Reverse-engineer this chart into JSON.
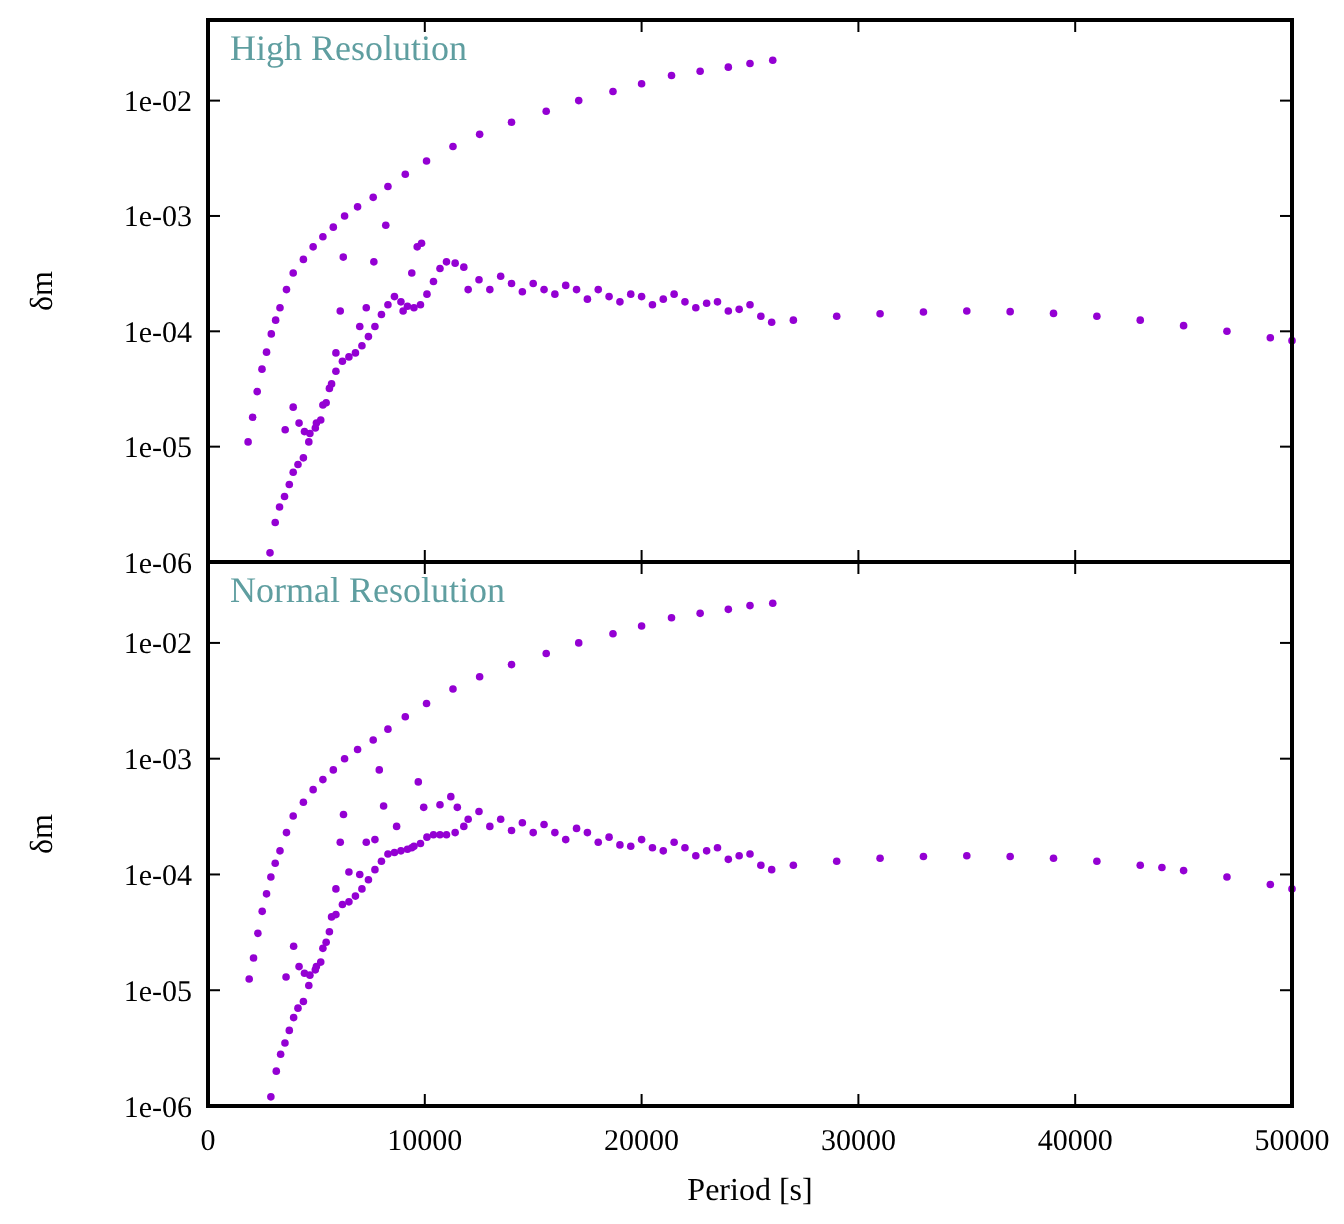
{
  "chart_data": [
    {
      "type": "scatter",
      "ylabel": "δm",
      "annotations": [
        "High Resolution"
      ],
      "log": "y",
      "marker": "circle",
      "grid": false,
      "tick_labels": "y",
      "xlim": [
        0,
        50000
      ],
      "xticks": [
        0,
        10000,
        20000,
        30000,
        40000,
        50000
      ],
      "ylim": [
        1e-06,
        0.05
      ],
      "yticks": [
        {
          "value": 1e-06,
          "label": "1e-06"
        },
        {
          "value": 1e-05,
          "label": "1e-05"
        },
        {
          "value": 0.0001,
          "label": "1e-04"
        },
        {
          "value": 0.001,
          "label": "1e-03"
        },
        {
          "value": 0.01,
          "label": "1e-02"
        }
      ],
      "series": [
        {
          "color": "#9400d3",
          "x": [
            1850,
            2060,
            2270,
            2490,
            2700,
            2920,
            3120,
            3320,
            3620,
            3930,
            4400,
            4850,
            5300,
            5780,
            6300,
            6900,
            7620,
            8300,
            9100,
            10080,
            11300,
            12530,
            14000,
            15600,
            17100,
            18680,
            20000,
            21380,
            22700,
            24000,
            25000,
            26050
          ],
          "values": [
            1.1e-05,
            1.8e-05,
            3e-05,
            4.7e-05,
            6.6e-05,
            9.5e-05,
            0.000125,
            0.00016,
            0.00023,
            0.00032,
            0.00042,
            0.00054,
            0.00066,
            0.0008,
            0.001,
            0.0012,
            0.00145,
            0.0018,
            0.0023,
            0.003,
            0.004,
            0.0051,
            0.0065,
            0.0081,
            0.01,
            0.012,
            0.014,
            0.0165,
            0.018,
            0.0195,
            0.021,
            0.0224
          ]
        },
        {
          "color": "#9400d3",
          "x": [
            2860,
            3100,
            3300,
            3530,
            3750,
            3930,
            4150,
            4400,
            4650,
            5000,
            5300,
            5600,
            5900,
            6200,
            6500,
            6800,
            7100,
            7400,
            7700,
            8000,
            8300,
            8600,
            8900,
            9200,
            9500,
            9800,
            10100,
            10400,
            10700,
            11000,
            11400,
            11800,
            3560,
            3930,
            4200,
            4450,
            4700,
            4950,
            5200,
            5450,
            5700,
            5900,
            6100,
            6240,
            7000,
            7300,
            7650,
            8200,
            9000,
            9400,
            9650,
            9850,
            12000,
            12500,
            13000,
            13500,
            14000,
            14500,
            15000,
            15500,
            16000,
            16500,
            17000,
            17500,
            18000,
            18500,
            19000,
            19500,
            20000,
            20500,
            21000,
            21500,
            22000,
            22500,
            23000,
            23500,
            24000,
            24500,
            25000,
            25500,
            26000,
            27000,
            29000,
            31000,
            33000,
            35000,
            37000,
            39000,
            41000,
            43000,
            45000,
            47000,
            49000,
            50000
          ],
          "values": [
            1.2e-06,
            2.2e-06,
            3e-06,
            3.7e-06,
            4.7e-06,
            6e-06,
            7e-06,
            8e-06,
            1.1e-05,
            1.6e-05,
            2.3e-05,
            3.2e-05,
            4.5e-05,
            5.5e-05,
            6e-05,
            6.5e-05,
            7.5e-05,
            9e-05,
            0.00011,
            0.00014,
            0.00017,
            0.0002,
            0.00018,
            0.000165,
            0.00016,
            0.00017,
            0.00021,
            0.00027,
            0.00035,
            0.0004,
            0.00039,
            0.00036,
            1.4e-05,
            2.2e-05,
            1.6e-05,
            1.35e-05,
            1.3e-05,
            1.45e-05,
            1.7e-05,
            2.4e-05,
            3.5e-05,
            6.5e-05,
            0.00015,
            0.00044,
            0.00011,
            0.00016,
            0.0004,
            0.00083,
            0.00015,
            0.00032,
            0.00054,
            0.00058,
            0.00023,
            0.00028,
            0.00023,
            0.0003,
            0.00026,
            0.00022,
            0.00026,
            0.00023,
            0.00021,
            0.00025,
            0.00023,
            0.00019,
            0.00023,
            0.0002,
            0.00018,
            0.00021,
            0.0002,
            0.00017,
            0.00019,
            0.00021,
            0.00018,
            0.00016,
            0.000175,
            0.00018,
            0.00015,
            0.000155,
            0.00017,
            0.000135,
            0.00012,
            0.000125,
            0.000135,
            0.000142,
            0.000147,
            0.00015,
            0.000148,
            0.000143,
            0.000135,
            0.000125,
            0.000112,
            0.0001,
            8.8e-05,
            8.3e-05
          ]
        }
      ]
    },
    {
      "type": "scatter",
      "xlabel": "Period [s]",
      "ylabel": "δm",
      "annotations": [
        "Normal Resolution"
      ],
      "log": "y",
      "marker": "circle",
      "grid": false,
      "xlim": [
        0,
        50000
      ],
      "xticks": [
        0,
        10000,
        20000,
        30000,
        40000,
        50000
      ],
      "ylim": [
        1e-06,
        0.05
      ],
      "yticks": [
        {
          "value": 1e-06,
          "label": "1e-06"
        },
        {
          "value": 1e-05,
          "label": "1e-05"
        },
        {
          "value": 0.0001,
          "label": "1e-04"
        },
        {
          "value": 0.001,
          "label": "1e-03"
        },
        {
          "value": 0.01,
          "label": "1e-02"
        }
      ],
      "series": [
        {
          "color": "#9400d3",
          "x": [
            1900,
            2100,
            2300,
            2500,
            2700,
            2900,
            3100,
            3320,
            3620,
            3930,
            4400,
            4850,
            5300,
            5780,
            6300,
            6900,
            7620,
            8300,
            9100,
            10080,
            11300,
            12530,
            14000,
            15600,
            17100,
            18680,
            20000,
            21380,
            22700,
            24000,
            25000,
            26050
          ],
          "values": [
            1.25e-05,
            1.9e-05,
            3.1e-05,
            4.8e-05,
            6.8e-05,
            9.5e-05,
            0.000125,
            0.00016,
            0.00023,
            0.00032,
            0.00042,
            0.00054,
            0.00066,
            0.0008,
            0.001,
            0.0012,
            0.00145,
            0.0018,
            0.0023,
            0.003,
            0.004,
            0.0051,
            0.0065,
            0.0081,
            0.01,
            0.012,
            0.014,
            0.0165,
            0.018,
            0.0195,
            0.021,
            0.022
          ]
        },
        {
          "color": "#9400d3",
          "x": [
            2900,
            3150,
            3350,
            3550,
            3750,
            3950,
            4150,
            4400,
            4650,
            5000,
            5300,
            5600,
            5900,
            6200,
            6500,
            6800,
            7100,
            7400,
            7700,
            8000,
            8300,
            8600,
            8900,
            9200,
            9500,
            9800,
            10100,
            10400,
            10700,
            11000,
            11400,
            11800,
            3600,
            3950,
            4200,
            4450,
            4700,
            4950,
            5200,
            5450,
            5700,
            5900,
            6100,
            6250,
            6500,
            7000,
            7300,
            7700,
            7900,
            8100,
            8700,
            9400,
            9700,
            9950,
            10700,
            11200,
            11500,
            12000,
            12500,
            13000,
            13500,
            14000,
            14500,
            15000,
            15500,
            16000,
            16500,
            17000,
            17500,
            18000,
            18500,
            19000,
            19500,
            20000,
            20500,
            21000,
            21500,
            22000,
            22500,
            23000,
            23500,
            24000,
            24500,
            25000,
            25500,
            26000,
            27000,
            29000,
            31000,
            33000,
            35000,
            37000,
            39000,
            41000,
            43000,
            44000,
            45000,
            47000,
            49000,
            50000
          ],
          "values": [
            1.2e-06,
            2e-06,
            2.8e-06,
            3.5e-06,
            4.5e-06,
            5.8e-06,
            7e-06,
            8e-06,
            1.1e-05,
            1.6e-05,
            2.3e-05,
            3.2e-05,
            4.5e-05,
            5.5e-05,
            5.8e-05,
            6.5e-05,
            7.5e-05,
            9e-05,
            0.00011,
            0.00013,
            0.00015,
            0.000155,
            0.00016,
            0.000165,
            0.000175,
            0.000185,
            0.00021,
            0.00022,
            0.00022,
            0.00022,
            0.00023,
            0.00026,
            1.3e-05,
            2.4e-05,
            1.6e-05,
            1.4e-05,
            1.35e-05,
            1.5e-05,
            1.75e-05,
            2.6e-05,
            4.3e-05,
            7.5e-05,
            0.00019,
            0.00033,
            0.000105,
            0.0001,
            0.00019,
            0.0002,
            0.0008,
            0.00039,
            0.00026,
            0.00017,
            0.00063,
            0.00038,
            0.0004,
            0.00047,
            0.00038,
            0.0003,
            0.00035,
            0.00026,
            0.0003,
            0.00024,
            0.00028,
            0.00023,
            0.00027,
            0.00023,
            0.0002,
            0.00025,
            0.00023,
            0.00019,
            0.00021,
            0.00018,
            0.000175,
            0.0002,
            0.00017,
            0.00016,
            0.00019,
            0.00017,
            0.000145,
            0.00016,
            0.00017,
            0.000135,
            0.000145,
            0.00015,
            0.00012,
            0.00011,
            0.00012,
            0.00013,
            0.000138,
            0.000143,
            0.000145,
            0.000143,
            0.000138,
            0.00013,
            0.00012,
            0.000115,
            0.000108,
            9.5e-05,
            8.2e-05,
            7.5e-05
          ]
        }
      ]
    }
  ]
}
